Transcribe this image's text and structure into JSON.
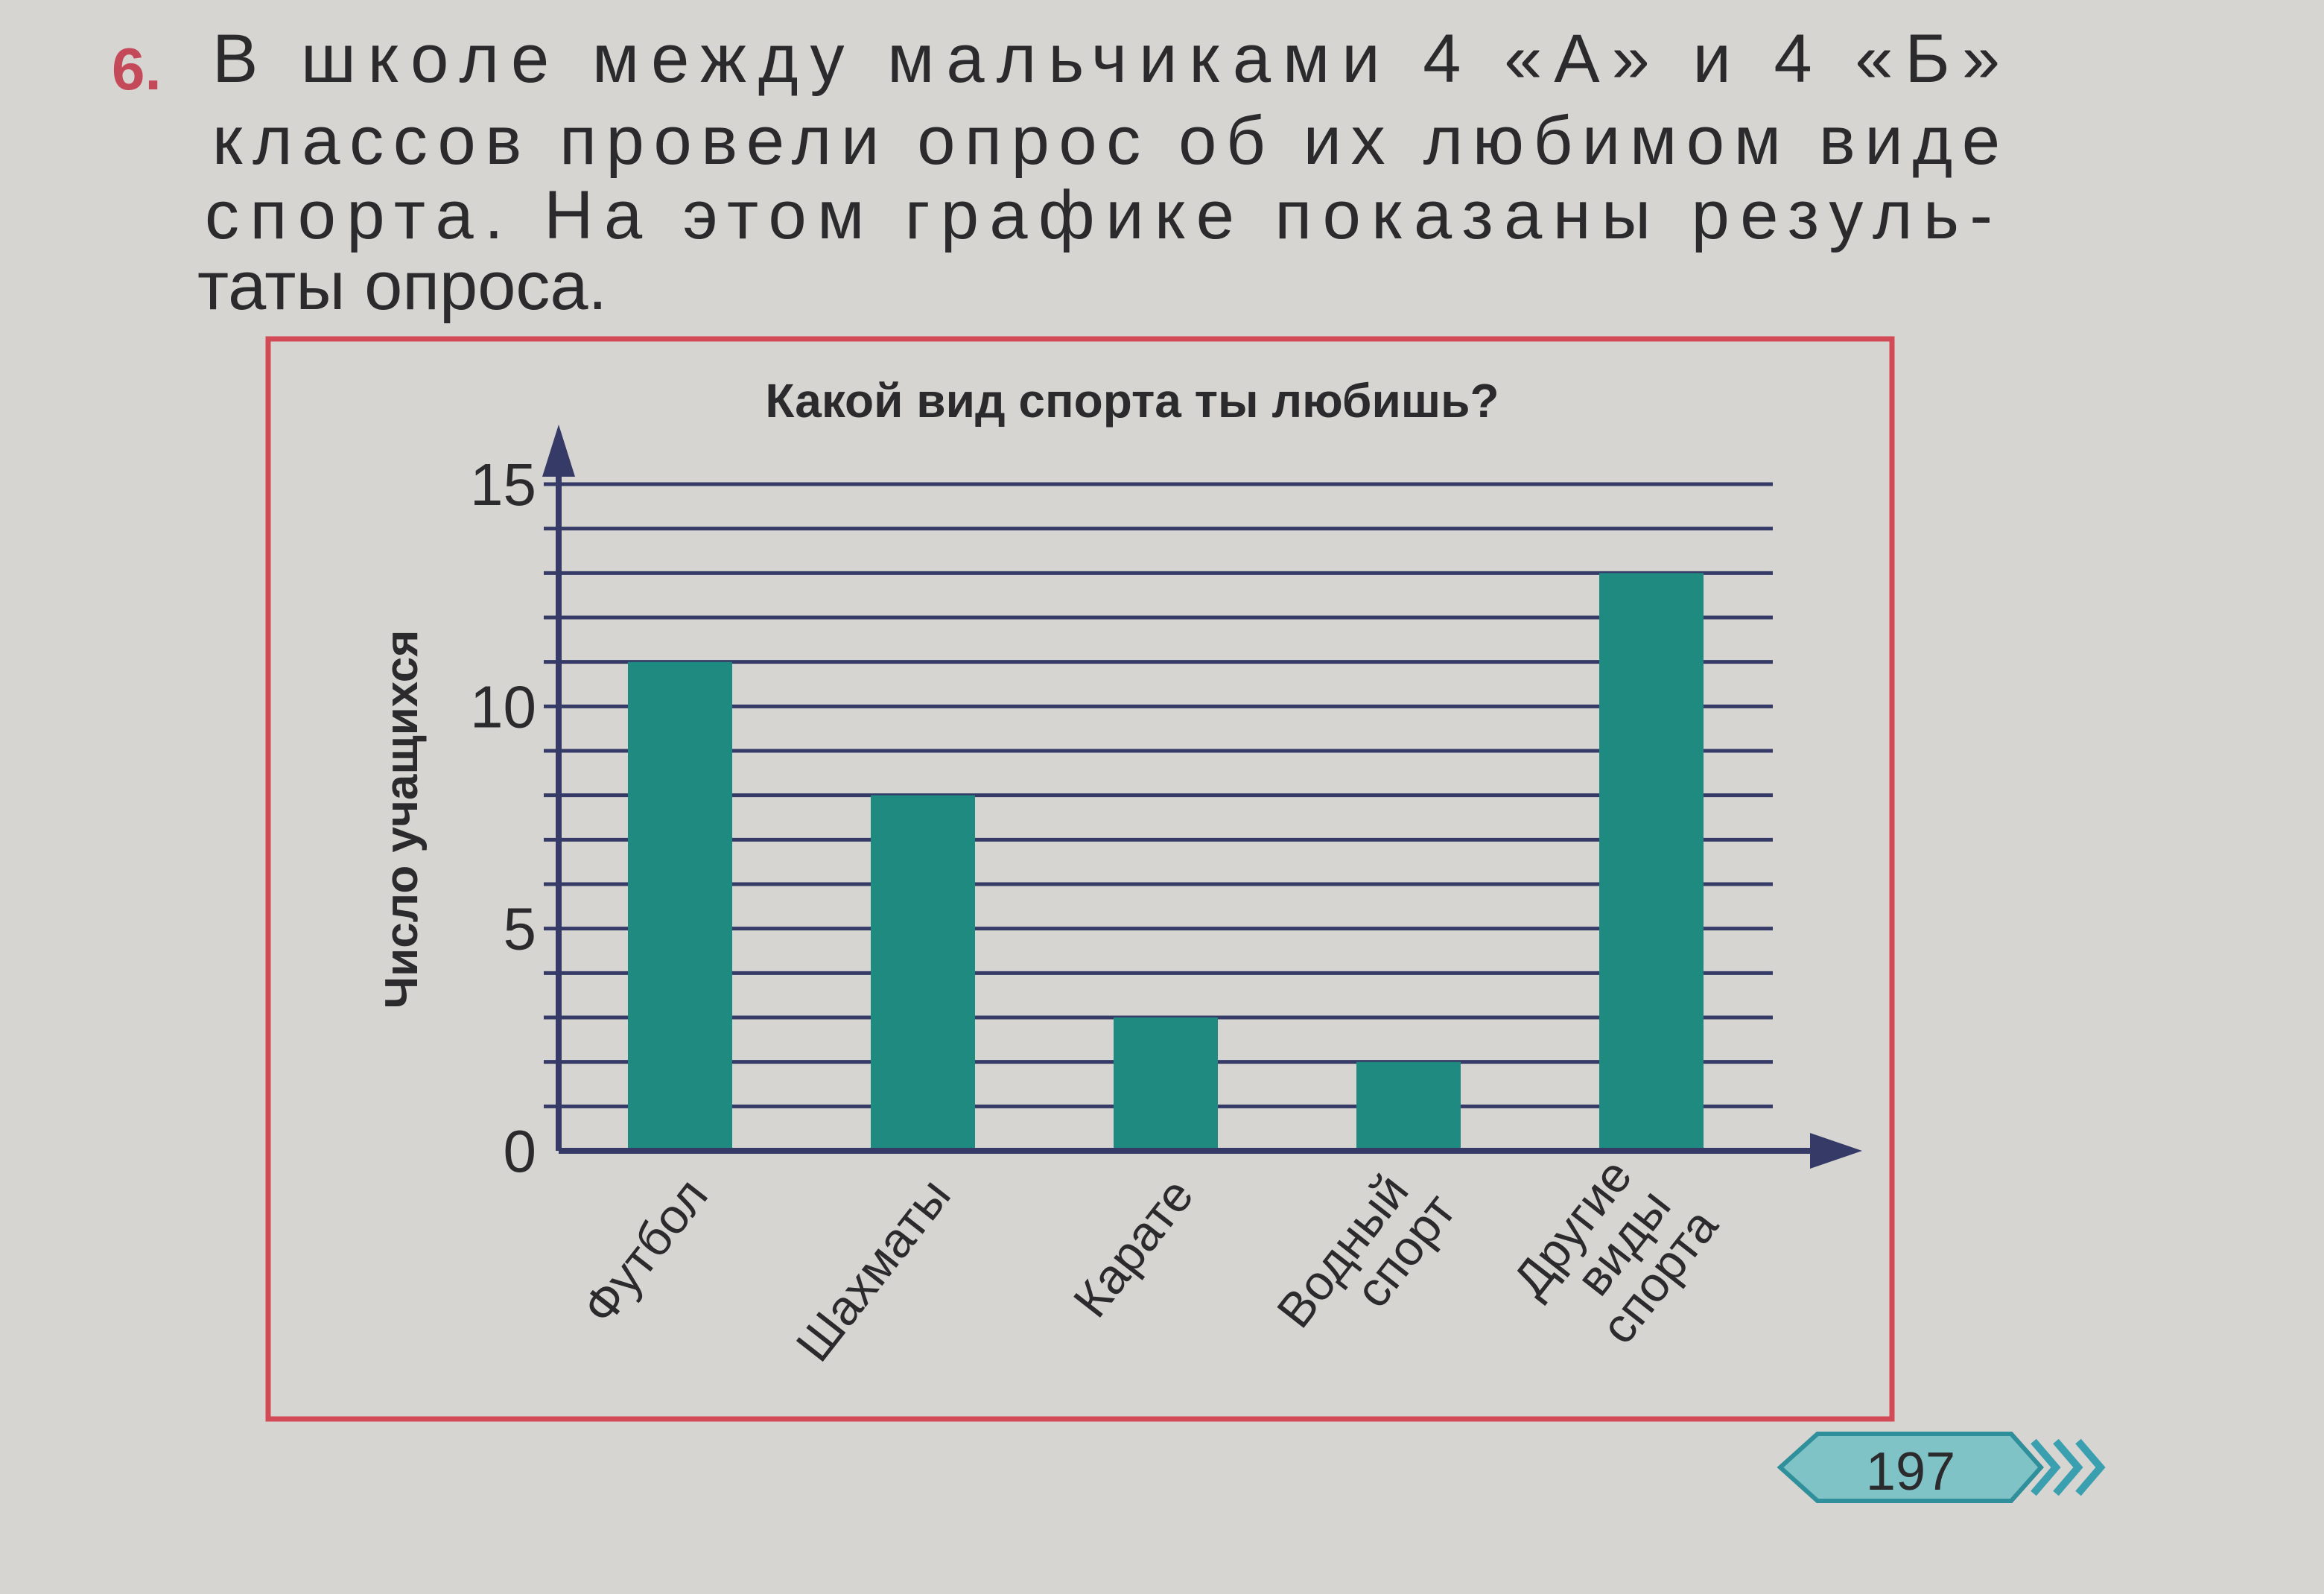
{
  "problem": {
    "number": "6.",
    "text_lines": [
      "В школе между мальчиками 4 «А» и 4 «Б»",
      "классов провели опрос об их любимом виде",
      "спорта. На этом графике показаны резуль-",
      "таты опроса."
    ]
  },
  "chart_data": {
    "type": "bar",
    "title": "Какой вид спорта ты любишь?",
    "y_label": "Число учащихся",
    "categories": [
      "Футбол",
      "Шахматы",
      "Карате",
      "Водный спорт",
      "Другие виды спорта"
    ],
    "values": [
      11,
      8,
      3,
      2,
      13
    ],
    "color": "#1f8a80",
    "ylim": [
      0,
      15
    ],
    "yticks": [
      0,
      5,
      10,
      15
    ],
    "minor_yticks": [
      1,
      2,
      3,
      4,
      6,
      7,
      8,
      9,
      11,
      12,
      13,
      14
    ],
    "grid": true
  },
  "page_number": "197"
}
